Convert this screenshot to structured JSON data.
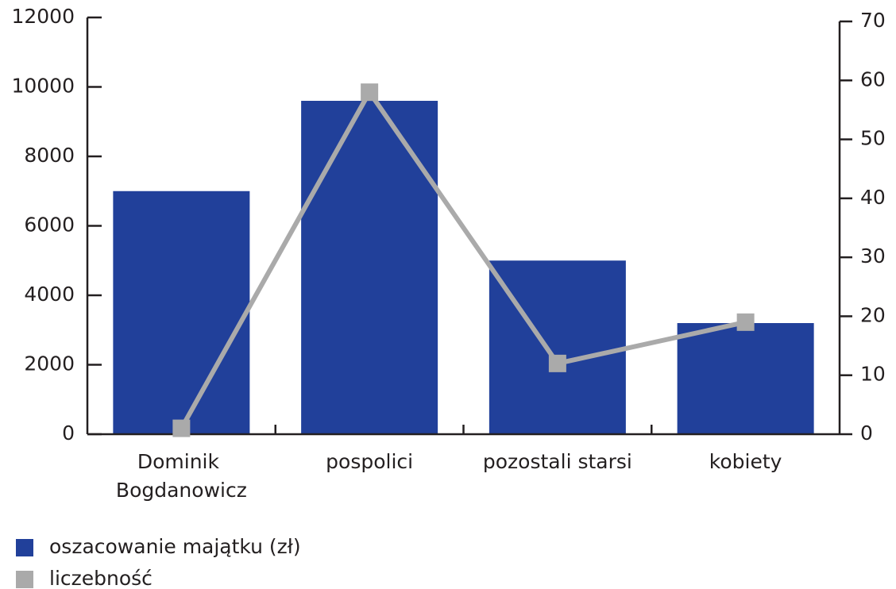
{
  "chart_data": {
    "type": "bar",
    "categories": [
      "Dominik Bogdanowicz",
      "pospolici",
      "pozostali starsi",
      "kobiety"
    ],
    "series": [
      {
        "name": "oszacowanie majątku (zł)",
        "color": "#21409a",
        "type": "bar",
        "values": [
          7000,
          9600,
          5000,
          3200
        ]
      },
      {
        "name": "liczebność",
        "color": "#aaaaaa",
        "type": "line",
        "axis": "y2",
        "values": [
          1,
          58,
          12,
          19
        ]
      }
    ],
    "ylim": [
      0,
      12000
    ],
    "yticks": [
      0,
      2000,
      4000,
      6000,
      8000,
      10000,
      12000
    ],
    "y2lim": [
      0,
      70
    ],
    "y2ticks": [
      0,
      10,
      20,
      30,
      40,
      50,
      60,
      70
    ],
    "grid": false,
    "legend": "bottom-left"
  }
}
